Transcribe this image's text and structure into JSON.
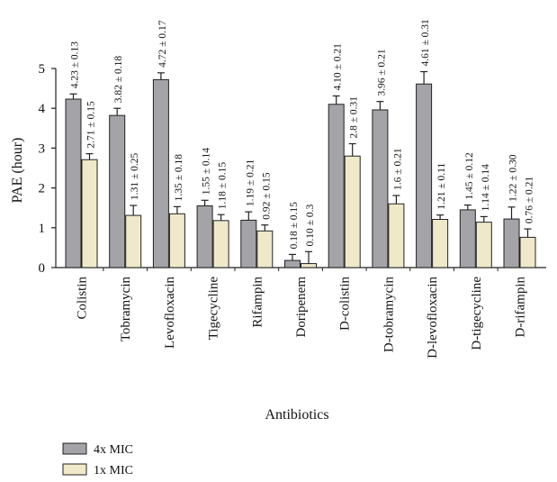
{
  "chart_data": {
    "type": "bar",
    "xlabel": "Antibiotics",
    "ylabel": "PAE (hour)",
    "ylim": [
      0,
      5
    ],
    "yticks": [
      0,
      1,
      2,
      3,
      4,
      5
    ],
    "grid": false,
    "legend_position": "bottom-left",
    "categories": [
      "Colistin",
      "Tobramycin",
      "Levofloxacin",
      "Tigecycline",
      "Rifampin",
      "Doripenem",
      "D-colistin",
      "D-tobramycin",
      "D-levofloxacin",
      "D-tigecycline",
      "D-rifampin"
    ],
    "series": [
      {
        "name": "4x MIC",
        "color": "#a3a3a8",
        "values": [
          4.23,
          3.82,
          4.72,
          1.55,
          1.19,
          0.18,
          4.1,
          3.96,
          4.61,
          1.45,
          1.22
        ],
        "errors": [
          0.13,
          0.18,
          0.17,
          0.14,
          0.21,
          0.15,
          0.21,
          0.21,
          0.31,
          0.12,
          0.3
        ],
        "labels": [
          "4.23 ± 0.13",
          "3.82 ± 0.18",
          "4.72 ± 0.17",
          "1.55 ± 0.14",
          "1.19 ± 0.21",
          "0.18 ± 0.15",
          "4.10 ± 0.21",
          "3.96 ± 0.21",
          "4.61 ± 0.31",
          "1.45 ± 0.12",
          "1.22 ± 0.30"
        ]
      },
      {
        "name": "1x MIC",
        "color": "#efe9c9",
        "values": [
          2.71,
          1.31,
          1.35,
          1.18,
          0.92,
          0.1,
          2.8,
          1.6,
          1.21,
          1.14,
          0.76
        ],
        "errors": [
          0.15,
          0.25,
          0.18,
          0.15,
          0.15,
          0.3,
          0.31,
          0.21,
          0.11,
          0.14,
          0.21
        ],
        "labels": [
          "2.71 ± 0.15",
          "1.31 ± 0.25",
          "1.35 ± 0.18",
          "1.18 ± 0.15",
          "0.92 ± 0.15",
          "0.10 ± 0.3",
          "2.8 ± 0.31",
          "1.6 ± 0.21",
          "1.21 ± 0.11",
          "1.14 ± 0.14",
          "0.76 ± 0.21"
        ]
      }
    ]
  }
}
